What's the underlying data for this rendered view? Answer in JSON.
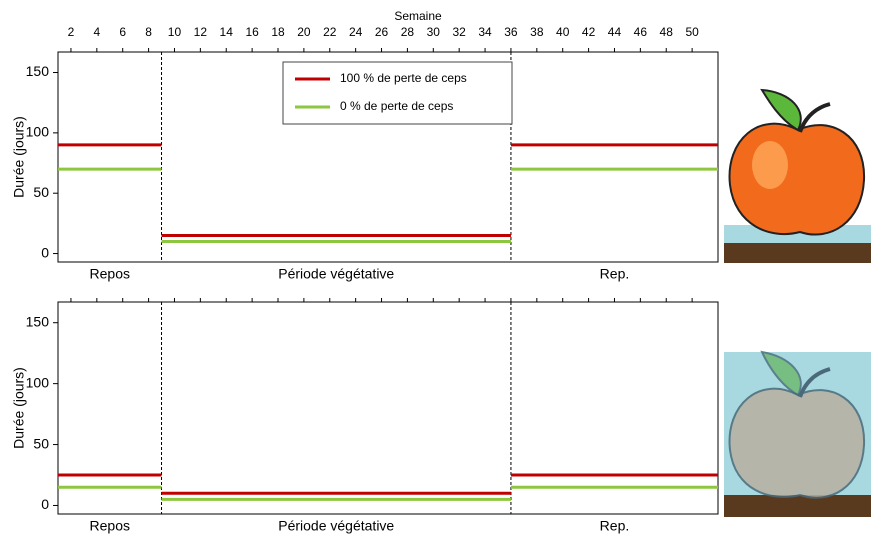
{
  "chart_data": [
    {
      "type": "line",
      "x_label": "Semaine",
      "y_label": "Durée (jours)",
      "xlim": [
        1,
        52
      ],
      "ylim": [
        -7,
        167
      ],
      "xticks": [
        2,
        4,
        6,
        8,
        10,
        12,
        14,
        16,
        18,
        20,
        22,
        24,
        26,
        28,
        30,
        32,
        34,
        36,
        38,
        40,
        42,
        44,
        46,
        48,
        50
      ],
      "yticks": [
        0,
        50,
        100,
        150
      ],
      "dividers": [
        9,
        36
      ],
      "period_labels": [
        "Repos",
        "Période végétative",
        "Rep."
      ],
      "legend": "upper center",
      "x": [
        1,
        9,
        9,
        36,
        36,
        52
      ],
      "series": [
        {
          "name": "100 % de perte de ceps",
          "color": "#c00000",
          "values": [
            90,
            90,
            15,
            15,
            90,
            90
          ]
        },
        {
          "name": "0 % de perte de ceps",
          "color": "#8dc63f",
          "values": [
            70,
            70,
            10,
            10,
            70,
            70
          ]
        }
      ]
    },
    {
      "type": "line",
      "y_label": "Durée (jours)",
      "xlim": [
        1,
        52
      ],
      "ylim": [
        -7,
        167
      ],
      "yticks": [
        0,
        50,
        100,
        150
      ],
      "dividers": [
        9,
        36
      ],
      "period_labels": [
        "Repos",
        "Période végétative",
        "Rep."
      ],
      "x": [
        1,
        9,
        9,
        36,
        36,
        52
      ],
      "series": [
        {
          "color": "#c00000",
          "values": [
            25,
            25,
            10,
            10,
            25,
            25
          ]
        },
        {
          "color": "#8dc63f",
          "values": [
            15,
            15,
            5,
            5,
            15,
            15
          ]
        }
      ]
    }
  ]
}
